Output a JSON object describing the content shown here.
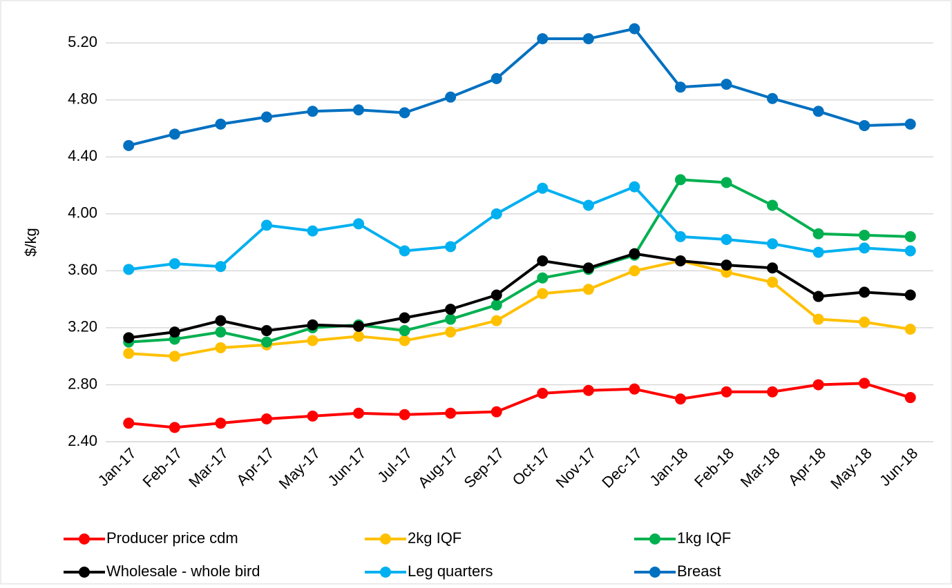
{
  "chart_data": {
    "type": "line",
    "y_label": "$/kg",
    "categories": [
      "Jan-17",
      "Feb-17",
      "Mar-17",
      "Apr-17",
      "May-17",
      "Jun-17",
      "Jul-17",
      "Aug-17",
      "Sep-17",
      "Oct-17",
      "Nov-17",
      "Dec-17",
      "Jan-18",
      "Feb-18",
      "Mar-18",
      "Apr-18",
      "May-18",
      "Jun-18"
    ],
    "ylim": [
      2.4,
      5.4
    ],
    "yticks": [
      {
        "value": 2.4,
        "label": "2.40"
      },
      {
        "value": 2.8,
        "label": "2.80"
      },
      {
        "value": 3.2,
        "label": "3.20"
      },
      {
        "value": 3.6,
        "label": "3.60"
      },
      {
        "value": 4.0,
        "label": "4.00"
      },
      {
        "value": 4.4,
        "label": "4.40"
      },
      {
        "value": 4.8,
        "label": "4.80"
      },
      {
        "value": 5.2,
        "label": "5.20"
      }
    ],
    "grid": true,
    "legend": "bottom",
    "series": [
      {
        "name": "Producer price cdm",
        "color": "#ff0000",
        "values": [
          2.53,
          2.5,
          2.53,
          2.56,
          2.58,
          2.6,
          2.59,
          2.6,
          2.61,
          2.74,
          2.76,
          2.77,
          2.7,
          2.75,
          2.75,
          2.8,
          2.81,
          2.71
        ]
      },
      {
        "name": "2kg IQF",
        "color": "#ffc000",
        "values": [
          3.02,
          3.0,
          3.06,
          3.08,
          3.11,
          3.14,
          3.11,
          3.17,
          3.25,
          3.44,
          3.47,
          3.6,
          3.67,
          3.59,
          3.52,
          3.26,
          3.24,
          3.19
        ]
      },
      {
        "name": "1kg IQF",
        "color": "#00b050",
        "values": [
          3.1,
          3.12,
          3.17,
          3.1,
          3.2,
          3.22,
          3.18,
          3.26,
          3.36,
          3.55,
          3.61,
          3.71,
          4.24,
          4.22,
          4.06,
          3.86,
          3.85,
          3.84
        ]
      },
      {
        "name": "Wholesale - whole bird",
        "color": "#000000",
        "values": [
          3.13,
          3.17,
          3.25,
          3.18,
          3.22,
          3.21,
          3.27,
          3.33,
          3.43,
          3.67,
          3.62,
          3.72,
          3.67,
          3.64,
          3.62,
          3.42,
          3.45,
          3.43
        ]
      },
      {
        "name": "Leg quarters",
        "color": "#00b0f0",
        "values": [
          3.61,
          3.65,
          3.63,
          3.92,
          3.88,
          3.93,
          3.74,
          3.77,
          4.0,
          4.18,
          4.06,
          4.19,
          3.84,
          3.82,
          3.79,
          3.73,
          3.76,
          3.74
        ]
      },
      {
        "name": "Breast",
        "color": "#0070c0",
        "values": [
          4.48,
          4.56,
          4.63,
          4.68,
          4.72,
          4.73,
          4.71,
          4.82,
          4.95,
          5.23,
          5.23,
          5.3,
          4.89,
          4.91,
          4.81,
          4.72,
          4.62,
          4.63
        ]
      }
    ]
  }
}
